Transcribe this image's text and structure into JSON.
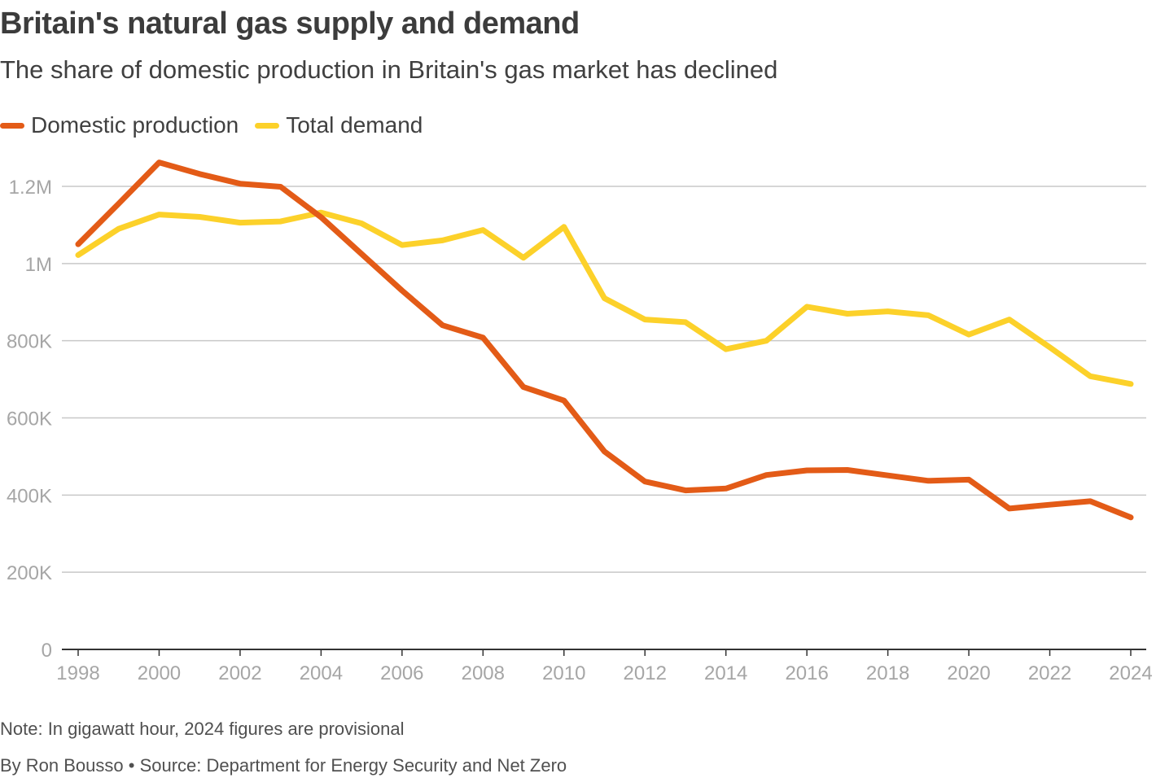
{
  "header": {
    "title": "Britain's natural gas supply and demand",
    "subtitle": "The share of domestic production in Britain's gas market has declined"
  },
  "footer": {
    "note": "Note: In gigawatt hour, 2024 figures are provisional",
    "byline": "By Ron Bousso • Source: Department for Energy Security and Net Zero"
  },
  "colors": {
    "domestic": "#e35b17",
    "demand": "#fcd12a",
    "grid": "#c8c8c8",
    "axis": "#333333"
  },
  "chart_data": {
    "type": "line",
    "title": "Britain's natural gas supply and demand",
    "subtitle": "The share of domestic production in Britain's gas market has declined",
    "xlabel": "",
    "ylabel": "",
    "x": [
      1998,
      1999,
      2000,
      2001,
      2002,
      2003,
      2004,
      2005,
      2006,
      2007,
      2008,
      2009,
      2010,
      2011,
      2012,
      2013,
      2014,
      2015,
      2016,
      2017,
      2018,
      2019,
      2020,
      2021,
      2022,
      2023,
      2024
    ],
    "x_ticks": [
      "1998",
      "2000",
      "2002",
      "2004",
      "2006",
      "2008",
      "2010",
      "2012",
      "2014",
      "2016",
      "2018",
      "2020",
      "2022",
      "2024"
    ],
    "y_ticks": [
      {
        "value": 0,
        "label": "0"
      },
      {
        "value": 200000,
        "label": "200K"
      },
      {
        "value": 400000,
        "label": "400K"
      },
      {
        "value": 600000,
        "label": "600K"
      },
      {
        "value": 800000,
        "label": "800K"
      },
      {
        "value": 1000000,
        "label": "1M"
      },
      {
        "value": 1200000,
        "label": "1.2M"
      }
    ],
    "xlim": [
      1998,
      2024
    ],
    "ylim": [
      0,
      1200000
    ],
    "grid": true,
    "legend_position": "top-left",
    "series": [
      {
        "name": "Domestic production",
        "color": "#e35b17",
        "values": [
          1050000,
          1155000,
          1262000,
          1232000,
          1207000,
          1199000,
          1120000,
          1025000,
          930000,
          840000,
          808000,
          680000,
          645000,
          513000,
          435000,
          412000,
          417000,
          452000,
          464000,
          465000,
          451000,
          437000,
          440000,
          365000,
          375000,
          384000,
          342000
        ]
      },
      {
        "name": "Total demand",
        "color": "#fcd12a",
        "values": [
          1022000,
          1090000,
          1127000,
          1121000,
          1106000,
          1109000,
          1132000,
          1104000,
          1048000,
          1060000,
          1087000,
          1015000,
          1095000,
          910000,
          855000,
          848000,
          778000,
          800000,
          888000,
          870000,
          876000,
          866000,
          816000,
          855000,
          783000,
          708000,
          688000
        ]
      }
    ]
  }
}
